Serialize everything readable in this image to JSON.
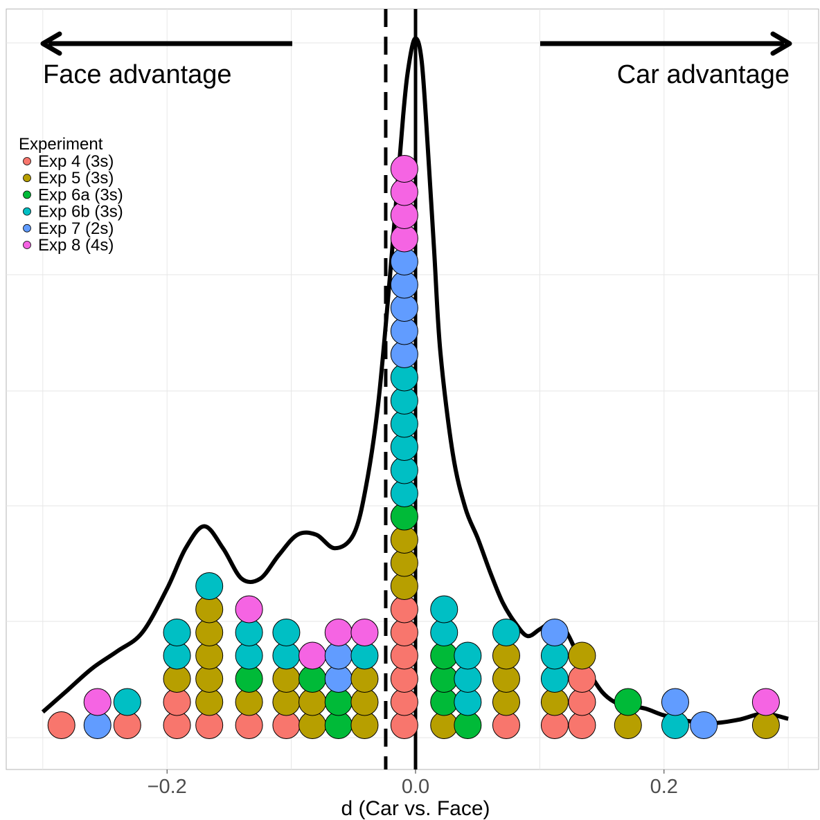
{
  "chart_data": {
    "type": "scatter",
    "subtype": "dotplot-with-density",
    "xlabel": "d (Car vs. Face)",
    "ylabel": "",
    "xlim": [
      -0.33,
      0.33
    ],
    "x_ticks": [
      {
        "value": -0.2,
        "label": "−0.2"
      },
      {
        "value": 0.0,
        "label": "0.0"
      },
      {
        "value": 0.2,
        "label": "0.2"
      }
    ],
    "grid": true,
    "legend": {
      "title": "Experiment",
      "position": "top-left",
      "entries": [
        {
          "name": "Exp 4 (3s)",
          "color": "#F8766D"
        },
        {
          "name": "Exp 5 (3s)",
          "color": "#B79F00"
        },
        {
          "name": "Exp 6a (3s)",
          "color": "#00BA38"
        },
        {
          "name": "Exp 6b (3s)",
          "color": "#00BFC4"
        },
        {
          "name": "Exp 7 (2s)",
          "color": "#619CFF"
        },
        {
          "name": "Exp 8 (4s)",
          "color": "#F564E3"
        }
      ]
    },
    "annotations": {
      "left_text": "Face advantage",
      "right_text": "Car advantage",
      "left_arrow_direction": "left",
      "right_arrow_direction": "right"
    },
    "reference_lines": [
      {
        "x": 0.0,
        "style": "solid"
      },
      {
        "x": -0.024,
        "style": "dashed"
      }
    ],
    "dot_stacks": [
      {
        "x": -0.285,
        "colors": [
          "#F8766D"
        ]
      },
      {
        "x": -0.256,
        "colors": [
          "#619CFF",
          "#F564E3"
        ]
      },
      {
        "x": -0.232,
        "colors": [
          "#F8766D",
          "#00BFC4"
        ]
      },
      {
        "x": -0.192,
        "colors": [
          "#F8766D",
          "#F8766D",
          "#B79F00",
          "#00BFC4",
          "#00BFC4"
        ]
      },
      {
        "x": -0.166,
        "colors": [
          "#F8766D",
          "#B79F00",
          "#B79F00",
          "#B79F00",
          "#B79F00",
          "#B79F00",
          "#00BFC4"
        ]
      },
      {
        "x": -0.134,
        "colors": [
          "#F8766D",
          "#B79F00",
          "#00BA38",
          "#00BFC4",
          "#00BFC4",
          "#F564E3"
        ]
      },
      {
        "x": -0.104,
        "colors": [
          "#F8766D",
          "#B79F00",
          "#B79F00",
          "#00BFC4",
          "#00BFC4"
        ]
      },
      {
        "x": -0.083,
        "colors": [
          "#B79F00",
          "#B79F00",
          "#00BA38",
          "#F564E3"
        ]
      },
      {
        "x": -0.062,
        "colors": [
          "#00BA38",
          "#00BA38",
          "#619CFF",
          "#619CFF",
          "#F564E3"
        ]
      },
      {
        "x": -0.041,
        "colors": [
          "#B79F00",
          "#B79F00",
          "#B79F00",
          "#00BFC4",
          "#F564E3"
        ]
      },
      {
        "x": -0.009,
        "colors": [
          "#F8766D",
          "#F8766D",
          "#F8766D",
          "#F8766D",
          "#F8766D",
          "#F8766D",
          "#B79F00",
          "#B79F00",
          "#B79F00",
          "#00BA38",
          "#00BFC4",
          "#00BFC4",
          "#00BFC4",
          "#00BFC4",
          "#00BFC4",
          "#00BFC4",
          "#619CFF",
          "#619CFF",
          "#619CFF",
          "#619CFF",
          "#619CFF",
          "#F564E3",
          "#F564E3",
          "#F564E3",
          "#F564E3"
        ]
      },
      {
        "x": 0.023,
        "colors": [
          "#B79F00",
          "#00BA38",
          "#00BA38",
          "#00BA38",
          "#00BFC4",
          "#00BFC4"
        ]
      },
      {
        "x": 0.042,
        "colors": [
          "#00BA38",
          "#00BFC4",
          "#00BFC4",
          "#00BFC4"
        ]
      },
      {
        "x": 0.073,
        "colors": [
          "#F8766D",
          "#B79F00",
          "#B79F00",
          "#B79F00",
          "#00BFC4"
        ]
      },
      {
        "x": 0.112,
        "colors": [
          "#F8766D",
          "#B79F00",
          "#00BFC4",
          "#00BFC4",
          "#619CFF"
        ]
      },
      {
        "x": 0.134,
        "colors": [
          "#F8766D",
          "#F8766D",
          "#F8766D",
          "#B79F00"
        ]
      },
      {
        "x": 0.171,
        "colors": [
          "#B79F00",
          "#00BA38"
        ]
      },
      {
        "x": 0.209,
        "colors": [
          "#00BFC4",
          "#619CFF"
        ]
      },
      {
        "x": 0.232,
        "colors": [
          "#619CFF"
        ]
      },
      {
        "x": 0.282,
        "colors": [
          "#B79F00",
          "#F564E3"
        ]
      }
    ],
    "density_curve": {
      "style": "solid",
      "x": [
        -0.3,
        -0.28,
        -0.26,
        -0.24,
        -0.22,
        -0.2,
        -0.185,
        -0.17,
        -0.155,
        -0.14,
        -0.125,
        -0.11,
        -0.095,
        -0.08,
        -0.065,
        -0.05,
        -0.04,
        -0.03,
        -0.02,
        -0.01,
        -0.005,
        0.0,
        0.005,
        0.01,
        0.015,
        0.02,
        0.03,
        0.04,
        0.05,
        0.06,
        0.07,
        0.08,
        0.09,
        0.1,
        0.11,
        0.12,
        0.13,
        0.14,
        0.15,
        0.16,
        0.17,
        0.185,
        0.2,
        0.22,
        0.24,
        0.26,
        0.28,
        0.3
      ],
      "y": [
        0.035,
        0.1,
        0.165,
        0.215,
        0.27,
        0.4,
        0.52,
        0.585,
        0.52,
        0.43,
        0.43,
        0.5,
        0.56,
        0.56,
        0.52,
        0.56,
        0.7,
        0.95,
        1.35,
        1.8,
        1.96,
        2.03,
        1.96,
        1.7,
        1.4,
        1.1,
        0.8,
        0.64,
        0.55,
        0.45,
        0.36,
        0.3,
        0.26,
        0.28,
        0.3,
        0.28,
        0.21,
        0.15,
        0.095,
        0.065,
        0.055,
        0.045,
        0.025,
        0.008,
        0.002,
        0.012,
        0.03,
        0.015
      ]
    }
  }
}
